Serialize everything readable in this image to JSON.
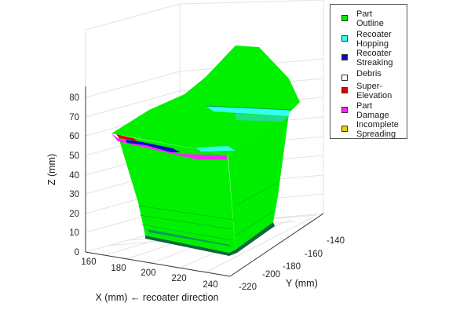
{
  "chart_data": {
    "type": "scatter",
    "subtype": "3d-surface",
    "axes": {
      "x": {
        "label": "X (mm) ← recoater direction",
        "ticks": [
          160,
          180,
          200,
          220,
          240
        ]
      },
      "y": {
        "label": "Y (mm)",
        "ticks": [
          -140,
          -160,
          -180,
          -200,
          -220
        ]
      },
      "z": {
        "label": "Z (mm)",
        "ticks": [
          0,
          10,
          20,
          30,
          40,
          50,
          60,
          70,
          80
        ]
      }
    },
    "grid": true,
    "legend_placement": "top-right-outside",
    "series": [
      {
        "name": "Part\nOutline",
        "color": "#00ee00"
      },
      {
        "name": "Recoater\nHopping",
        "color": "#33ffee"
      },
      {
        "name": "Recoater\nStreaking",
        "color": "#0a0ac8"
      },
      {
        "name": "Debris",
        "color": "#ffffff"
      },
      {
        "name": "Super-\nElevation",
        "color": "#e00000"
      },
      {
        "name": "Part\nDamage",
        "color": "#ff22ff"
      },
      {
        "name": "Incomplete\nSpreading",
        "color": "#e6d200"
      }
    ]
  }
}
